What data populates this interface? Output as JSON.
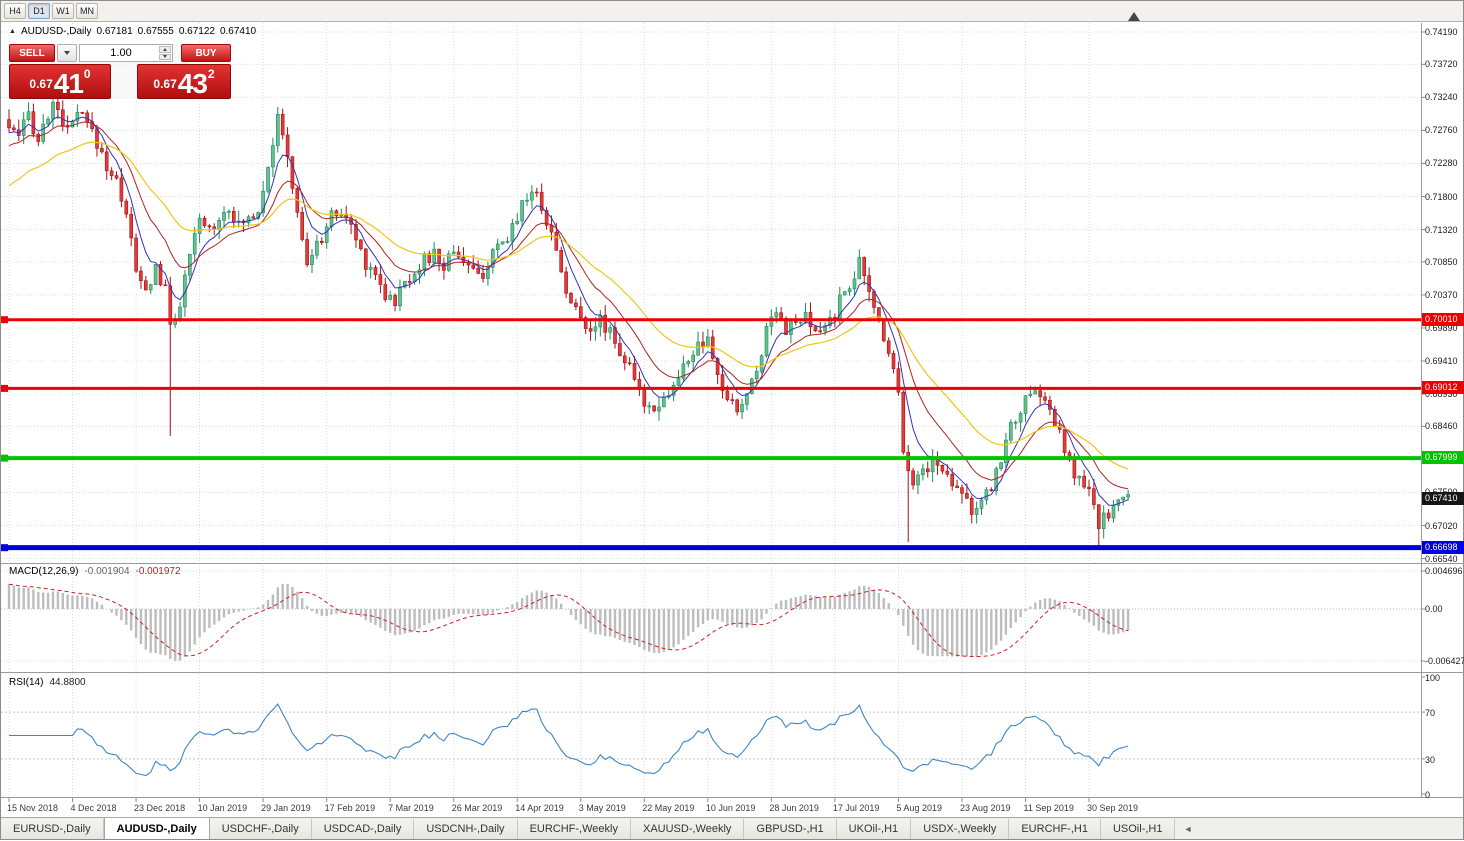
{
  "toolbar": {
    "timeframes": [
      {
        "label": "H4",
        "active": false
      },
      {
        "label": "D1",
        "active": true
      },
      {
        "label": "W1",
        "active": false
      },
      {
        "label": "MN",
        "active": false
      }
    ]
  },
  "chart_header": {
    "marker": "▲",
    "symbol": "AUDUSD-,Daily",
    "open": "0.67181",
    "high": "0.67555",
    "low": "0.67122",
    "close": "0.67410"
  },
  "trade_panel": {
    "sell_label": "SELL",
    "buy_label": "BUY",
    "volume": "1.00",
    "sell_price": {
      "prefix": "0.67",
      "big": "41",
      "sup": "0"
    },
    "buy_price": {
      "prefix": "0.67",
      "big": "43",
      "sup": "2"
    }
  },
  "indicator_headers": {
    "macd_title": "MACD(12,26,9)",
    "macd_main": "-0.001904",
    "macd_signal": "-0.001972",
    "rsi_title": "RSI(14)",
    "rsi_value": "44.8800"
  },
  "tabs": {
    "scroll_left_icon": "◄",
    "items": [
      {
        "label": "EURUSD-,Daily",
        "active": false
      },
      {
        "label": "AUDUSD-,Daily",
        "active": true
      },
      {
        "label": "USDCHF-,Daily",
        "active": false
      },
      {
        "label": "USDCAD-,Daily",
        "active": false
      },
      {
        "label": "USDCNH-,Daily",
        "active": false
      },
      {
        "label": "EURCHF-,Weekly",
        "active": false
      },
      {
        "label": "XAUUSD-,Weekly",
        "active": false
      },
      {
        "label": "GBPUSD-,H1",
        "active": false
      },
      {
        "label": "UKOil-,H1",
        "active": false
      },
      {
        "label": "USDX-,Weekly",
        "active": false
      },
      {
        "label": "EURCHF-,H1",
        "active": false
      },
      {
        "label": "USOil-,H1",
        "active": false
      }
    ]
  },
  "chart_data": {
    "type": "candlestick",
    "symbol": "AUDUSD-",
    "timeframe": "Daily",
    "current_ohlc": {
      "open": 0.67181,
      "high": 0.67555,
      "low": 0.67122,
      "close": 0.6741
    },
    "candle_count": 230,
    "ylim": [
      0.66476,
      0.74321
    ],
    "y_ticks": [
      "0.74190",
      "0.73720",
      "0.73240",
      "0.72760",
      "0.72280",
      "0.71800",
      "0.71320",
      "0.70850",
      "0.70370",
      "0.69890",
      "0.69410",
      "0.68930",
      "0.68460",
      "0.67980",
      "0.67500",
      "0.67020",
      "0.66540"
    ],
    "x_ticks": [
      {
        "label": "15 Nov 2018",
        "i": 0
      },
      {
        "label": "4 Dec 2018",
        "i": 13
      },
      {
        "label": "23 Dec 2018",
        "i": 26
      },
      {
        "label": "10 Jan 2019",
        "i": 39
      },
      {
        "label": "29 Jan 2019",
        "i": 52
      },
      {
        "label": "17 Feb 2019",
        "i": 65
      },
      {
        "label": "7 Mar 2019",
        "i": 78
      },
      {
        "label": "26 Mar 2019",
        "i": 91
      },
      {
        "label": "14 Apr 2019",
        "i": 104
      },
      {
        "label": "3 May 2019",
        "i": 117
      },
      {
        "label": "22 May 2019",
        "i": 130
      },
      {
        "label": "10 Jun 2019",
        "i": 143
      },
      {
        "label": "28 Jun 2019",
        "i": 156
      },
      {
        "label": "17 Jul 2019",
        "i": 169
      },
      {
        "label": "5 Aug 2019",
        "i": 182
      },
      {
        "label": "23 Aug 2019",
        "i": 195
      },
      {
        "label": "11 Sep 2019",
        "i": 208
      },
      {
        "label": "30 Sep 2019",
        "i": 221
      }
    ],
    "price_anchors": [
      [
        0,
        0.728
      ],
      [
        2,
        0.7262
      ],
      [
        4,
        0.73
      ],
      [
        6,
        0.7262
      ],
      [
        8,
        0.73
      ],
      [
        10,
        0.7312
      ],
      [
        12,
        0.727
      ],
      [
        14,
        0.73
      ],
      [
        16,
        0.7285
      ],
      [
        18,
        0.7258
      ],
      [
        20,
        0.7225
      ],
      [
        22,
        0.72
      ],
      [
        24,
        0.716
      ],
      [
        26,
        0.7068
      ],
      [
        28,
        0.704
      ],
      [
        30,
        0.7078
      ],
      [
        32,
        0.704
      ],
      [
        33,
        0.6995
      ],
      [
        35,
        0.7025
      ],
      [
        37,
        0.709
      ],
      [
        39,
        0.7145
      ],
      [
        41,
        0.7132
      ],
      [
        43,
        0.715
      ],
      [
        45,
        0.7168
      ],
      [
        47,
        0.7135
      ],
      [
        49,
        0.715
      ],
      [
        51,
        0.7162
      ],
      [
        53,
        0.723
      ],
      [
        55,
        0.729
      ],
      [
        57,
        0.724
      ],
      [
        59,
        0.715
      ],
      [
        61,
        0.7085
      ],
      [
        63,
        0.7105
      ],
      [
        65,
        0.714
      ],
      [
        67,
        0.7158
      ],
      [
        69,
        0.715
      ],
      [
        71,
        0.7118
      ],
      [
        73,
        0.7085
      ],
      [
        75,
        0.707
      ],
      [
        77,
        0.7038
      ],
      [
        79,
        0.7028
      ],
      [
        81,
        0.7055
      ],
      [
        84,
        0.7082
      ],
      [
        87,
        0.7095
      ],
      [
        89,
        0.7078
      ],
      [
        91,
        0.7105
      ],
      [
        93,
        0.7088
      ],
      [
        96,
        0.706
      ],
      [
        99,
        0.7092
      ],
      [
        102,
        0.7118
      ],
      [
        105,
        0.7172
      ],
      [
        107,
        0.719
      ],
      [
        109,
        0.7168
      ],
      [
        111,
        0.7125
      ],
      [
        113,
        0.7075
      ],
      [
        115,
        0.7022
      ],
      [
        117,
        0.7005
      ],
      [
        119,
        0.6992
      ],
      [
        121,
        0.6998
      ],
      [
        123,
        0.6988
      ],
      [
        125,
        0.6955
      ],
      [
        127,
        0.6928
      ],
      [
        129,
        0.6892
      ],
      [
        131,
        0.6875
      ],
      [
        133,
        0.6882
      ],
      [
        135,
        0.6895
      ],
      [
        137,
        0.6915
      ],
      [
        139,
        0.6945
      ],
      [
        141,
        0.6962
      ],
      [
        143,
        0.6965
      ],
      [
        145,
        0.692
      ],
      [
        147,
        0.6882
      ],
      [
        149,
        0.687
      ],
      [
        151,
        0.6892
      ],
      [
        153,
        0.6928
      ],
      [
        155,
        0.6988
      ],
      [
        157,
        0.7022
      ],
      [
        159,
        0.6988
      ],
      [
        161,
        0.6995
      ],
      [
        163,
        0.7002
      ],
      [
        165,
        0.6978
      ],
      [
        167,
        0.6992
      ],
      [
        169,
        0.7012
      ],
      [
        171,
        0.7042
      ],
      [
        173,
        0.7068
      ],
      [
        174,
        0.7082
      ],
      [
        176,
        0.7038
      ],
      [
        178,
        0.7
      ],
      [
        180,
        0.6958
      ],
      [
        182,
        0.6898
      ],
      [
        183,
        0.6818
      ],
      [
        185,
        0.6762
      ],
      [
        187,
        0.6782
      ],
      [
        189,
        0.6795
      ],
      [
        191,
        0.6782
      ],
      [
        193,
        0.6768
      ],
      [
        195,
        0.6758
      ],
      [
        197,
        0.6722
      ],
      [
        199,
        0.673
      ],
      [
        201,
        0.6758
      ],
      [
        203,
        0.6802
      ],
      [
        205,
        0.6845
      ],
      [
        207,
        0.6872
      ],
      [
        209,
        0.6888
      ],
      [
        211,
        0.6895
      ],
      [
        213,
        0.6868
      ],
      [
        215,
        0.6832
      ],
      [
        217,
        0.6788
      ],
      [
        219,
        0.6768
      ],
      [
        221,
        0.6748
      ],
      [
        223,
        0.6702
      ],
      [
        225,
        0.6722
      ],
      [
        227,
        0.6736
      ],
      [
        229,
        0.6741
      ]
    ],
    "spikes": [
      {
        "i": 33,
        "low": 0.6832
      },
      {
        "i": 184,
        "low": 0.6678
      },
      {
        "i": 223,
        "low": 0.6671
      }
    ],
    "moving_averages": [
      {
        "period": 6,
        "color": "#3333B8",
        "width": 1,
        "init_offset": -0.001
      },
      {
        "period": 14,
        "color": "#B22222",
        "width": 1,
        "init_offset": -0.003
      },
      {
        "period": 30,
        "color": "#EFC617",
        "width": 1.2,
        "init_offset": -0.009
      }
    ],
    "hlines": [
      {
        "label": "0.70010",
        "value": 0.7001,
        "color": "#EE0000",
        "width": 3
      },
      {
        "label": "0.69012",
        "value": 0.69012,
        "color": "#EE0000",
        "width": 3
      },
      {
        "label": "0.67999",
        "value": 0.67999,
        "color": "#00C400",
        "width": 4
      },
      {
        "label": "0.66698",
        "value": 0.66698,
        "color": "#0000DD",
        "width": 5
      }
    ],
    "bid_tag": {
      "label": "0.67410",
      "value": 0.6741,
      "color": "#151515"
    },
    "macd": {
      "fast": 12,
      "slow": 26,
      "signal": 9,
      "main_display": -0.001904,
      "signal_display": -0.001972,
      "scale_ticks": [
        {
          "label": "0.004696",
          "value": 0.004696
        },
        {
          "label": "0.00",
          "value": 0
        },
        {
          "label": "-0.006427",
          "value": -0.006427
        }
      ]
    },
    "rsi": {
      "period": 14,
      "display": 44.88,
      "levels": [
        70,
        30
      ],
      "scale_ticks": [
        {
          "label": "100",
          "value": 100
        },
        {
          "label": "70",
          "value": 70
        },
        {
          "label": "30",
          "value": 30
        },
        {
          "label": "0",
          "value": 0
        }
      ]
    },
    "colors": {
      "up_fill": "#63C08F",
      "up_stroke": "#1E8A5A",
      "down_fill": "#E23B3B",
      "down_stroke": "#A61111",
      "macd_hist": "#BDBDBD",
      "macd_signal": "#CC2222",
      "rsi_line": "#3E86C6",
      "grid": "#DCDCDC",
      "separator": "#9A9A9A"
    }
  }
}
